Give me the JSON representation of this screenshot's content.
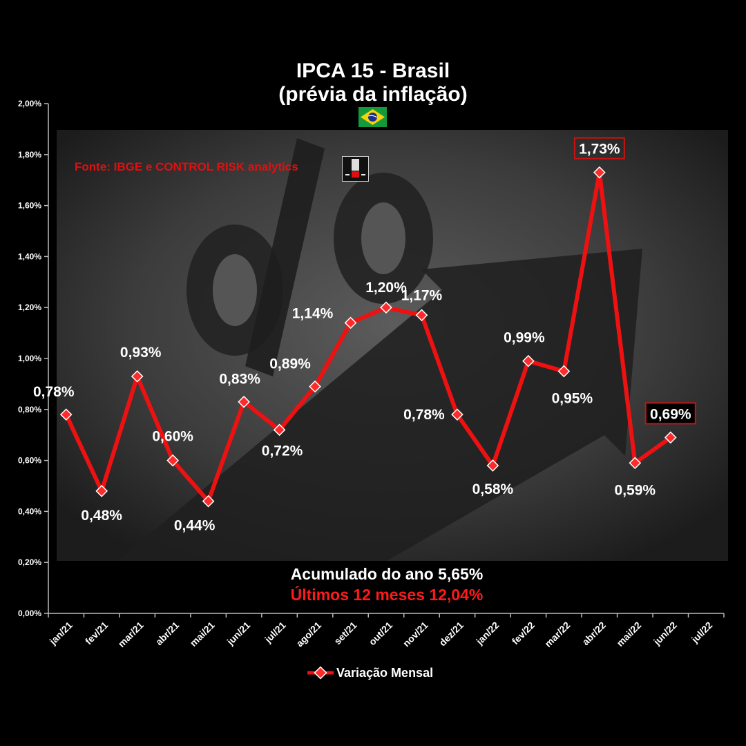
{
  "title_line1": "IPCA 15 - Brasil",
  "title_line2": "(prévia da inflação)",
  "source": "Fonte: IBGE e CONTROL RISK analytics",
  "summary_ytd": "Acumulado do ano 5,65%",
  "summary_12m": "Últimos 12 meses 12,04%",
  "legend_label": "Variação Mensal",
  "colors": {
    "line": "#ee1111",
    "marker_fill": "#ff2a2a",
    "marker_stroke": "#ffffff",
    "text": "#ffffff",
    "highlight_box": "#cc1111",
    "background": "#000000"
  },
  "chart_data": {
    "type": "line",
    "categories": [
      "jan/21",
      "fev/21",
      "mar/21",
      "abr/21",
      "mai/21",
      "jun/21",
      "jul/21",
      "ago/21",
      "set/21",
      "out/21",
      "nov/21",
      "dez/21",
      "jan/22",
      "fev/22",
      "mar/22",
      "abr/22",
      "mai/22",
      "jun/22",
      "jul/22"
    ],
    "series": [
      {
        "name": "Variação Mensal",
        "values": [
          0.78,
          0.48,
          0.93,
          0.6,
          0.44,
          0.83,
          0.72,
          0.89,
          1.14,
          1.2,
          1.17,
          0.78,
          0.58,
          0.99,
          0.95,
          1.73,
          0.59,
          0.69,
          null
        ],
        "labels": [
          "0,78%",
          "0,48%",
          "0,93%",
          "0,60%",
          "0,44%",
          "0,83%",
          "0,72%",
          "0,89%",
          "1,14%",
          "1,20%",
          "1,17%",
          "0,78%",
          "0,58%",
          "0,99%",
          "0,95%",
          "1,73%",
          "0,59%",
          "0,69%",
          null
        ]
      }
    ],
    "y_ticks": [
      0,
      0.2,
      0.4,
      0.6,
      0.8,
      1.0,
      1.2,
      1.4,
      1.6,
      1.8,
      2.0
    ],
    "y_tick_labels": [
      "0,00%",
      "0,20%",
      "0,40%",
      "0,60%",
      "0,80%",
      "1,00%",
      "1,20%",
      "1,40%",
      "1,60%",
      "1,80%",
      "2,00%"
    ],
    "ylim": [
      0,
      2.0
    ],
    "title": "IPCA 15 - Brasil (prévia da inflação)",
    "xlabel": "",
    "ylabel": "",
    "grid": false,
    "legend": "bottom",
    "highlighted_labels": [
      "1,73%",
      "0,69%"
    ]
  }
}
